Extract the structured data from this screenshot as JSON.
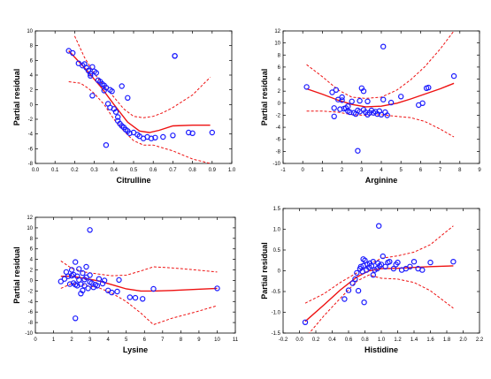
{
  "chart_data": [
    {
      "type": "scatter",
      "xlabel": "Citrulline",
      "ylabel": "Partial residual",
      "xlim": [
        0.0,
        1.0
      ],
      "ylim": [
        -8,
        10
      ],
      "xticks": [
        "0.0",
        "0.1",
        "0.2",
        "0.3",
        "0.4",
        "0.5",
        "0.6",
        "0.7",
        "0.8",
        "0.9",
        "1.0"
      ],
      "yticks": [
        "-8",
        "-6",
        "-4",
        "-2",
        "0",
        "2",
        "4",
        "6",
        "8",
        "10"
      ],
      "points": {
        "x": [
          0.17,
          0.19,
          0.22,
          0.24,
          0.25,
          0.26,
          0.27,
          0.28,
          0.28,
          0.29,
          0.3,
          0.31,
          0.32,
          0.33,
          0.34,
          0.35,
          0.35,
          0.36,
          0.37,
          0.38,
          0.39,
          0.4,
          0.41,
          0.42,
          0.42,
          0.43,
          0.44,
          0.45,
          0.46,
          0.47,
          0.48,
          0.5,
          0.52,
          0.53,
          0.55,
          0.57,
          0.59,
          0.61,
          0.65,
          0.7,
          0.71,
          0.78,
          0.8,
          0.9,
          0.71,
          0.36,
          0.29,
          0.47,
          0.44,
          0.38
        ],
        "y": [
          7.3,
          7.0,
          5.6,
          5.3,
          5.5,
          5.0,
          4.6,
          4.2,
          3.9,
          5.1,
          4.5,
          4.3,
          3.3,
          3.1,
          2.8,
          2.6,
          1.9,
          2.3,
          0.1,
          2.0,
          1.8,
          -0.6,
          -1.0,
          -1.7,
          -2.2,
          -2.6,
          -2.9,
          -3.1,
          -3.4,
          -3.6,
          -3.9,
          -3.8,
          -4.1,
          -4.3,
          -4.6,
          -4.4,
          -4.6,
          -4.5,
          -4.4,
          -4.2,
          6.6,
          -3.8,
          -3.9,
          -3.8,
          6.6,
          -5.5,
          1.2,
          0.9,
          2.5,
          -0.4
        ]
      },
      "fit": {
        "x": [
          0.17,
          0.25,
          0.33,
          0.4,
          0.47,
          0.53,
          0.58,
          0.63,
          0.7,
          0.8,
          0.89
        ],
        "y": [
          7.3,
          5.0,
          2.5,
          0.0,
          -2.4,
          -3.6,
          -3.8,
          -3.5,
          -2.9,
          -2.8,
          -2.8
        ]
      },
      "ci_upper": {
        "x": [
          0.2,
          0.25,
          0.3,
          0.35,
          0.4,
          0.45,
          0.5,
          0.55,
          0.6,
          0.65,
          0.7,
          0.8,
          0.89
        ],
        "y": [
          9.3,
          6.4,
          4.2,
          2.5,
          1.0,
          -0.6,
          -1.6,
          -1.8,
          -1.6,
          -1.1,
          -0.4,
          1.3,
          3.7
        ]
      },
      "ci_lower": {
        "x": [
          0.17,
          0.23,
          0.27,
          0.3,
          0.35,
          0.4,
          0.45,
          0.5,
          0.55,
          0.6,
          0.65,
          0.7,
          0.8,
          0.89
        ],
        "y": [
          3.1,
          2.9,
          2.2,
          1.5,
          0.0,
          -2.0,
          -3.6,
          -4.9,
          -5.5,
          -5.5,
          -5.9,
          -6.3,
          -7.4,
          -8.0
        ]
      }
    },
    {
      "type": "scatter",
      "xlabel": "Arginine",
      "ylabel": "Partial residual",
      "xlim": [
        -1,
        9
      ],
      "ylim": [
        -10,
        12
      ],
      "xticks": [
        "-1",
        "0",
        "1",
        "2",
        "3",
        "4",
        "5",
        "6",
        "7",
        "8",
        "9"
      ],
      "yticks": [
        "-10",
        "-8",
        "-6",
        "-4",
        "-2",
        "0",
        "2",
        "4",
        "6",
        "8",
        "10",
        "12"
      ],
      "points": {
        "x": [
          0.2,
          1.5,
          1.6,
          1.7,
          1.8,
          1.9,
          2.0,
          2.1,
          2.2,
          2.3,
          2.4,
          2.5,
          2.6,
          2.7,
          2.8,
          2.9,
          3.0,
          3.1,
          3.2,
          3.3,
          3.4,
          3.5,
          3.6,
          3.7,
          3.8,
          3.9,
          4.0,
          4.1,
          4.2,
          4.3,
          4.5,
          5.0,
          5.9,
          6.1,
          6.3,
          6.4,
          7.7,
          2.8,
          4.1,
          2.0,
          1.6,
          2.3,
          3.3,
          3.1,
          2.9
        ],
        "y": [
          2.7,
          1.8,
          -0.8,
          2.2,
          0.6,
          -1.0,
          1.0,
          -0.9,
          -0.8,
          -1.3,
          -1.5,
          0.3,
          -1.6,
          -1.8,
          -1.2,
          -1.4,
          2.5,
          -1.1,
          -1.5,
          -1.9,
          -1.6,
          -1.2,
          -1.6,
          -1.4,
          -1.8,
          -1.3,
          -1.9,
          9.4,
          -1.5,
          -2.0,
          0.1,
          1.1,
          -0.3,
          0.0,
          2.5,
          2.6,
          4.5,
          -7.9,
          0.6,
          0.5,
          -2.2,
          -0.5,
          0.3,
          2.0,
          0.4
        ]
      },
      "fit": {
        "x": [
          0.2,
          1.0,
          1.8,
          2.5,
          3.2,
          4.0,
          4.8,
          5.5,
          6.2,
          7.0,
          7.7
        ],
        "y": [
          2.4,
          1.5,
          0.5,
          -0.2,
          -0.6,
          -0.5,
          0.0,
          0.7,
          1.5,
          2.4,
          3.3
        ]
      },
      "ci_upper": {
        "x": [
          0.2,
          1.0,
          1.8,
          2.5,
          3.2,
          4.0,
          4.8,
          5.5,
          6.2,
          7.0,
          7.7
        ],
        "y": [
          6.4,
          4.4,
          2.2,
          1.0,
          0.8,
          1.0,
          2.2,
          3.9,
          6.0,
          9.0,
          12.0
        ]
      },
      "ci_lower": {
        "x": [
          0.2,
          1.0,
          1.8,
          2.5,
          3.2,
          4.0,
          4.8,
          5.5,
          6.2,
          7.0,
          7.7
        ],
        "y": [
          -1.3,
          -1.3,
          -1.5,
          -1.9,
          -2.0,
          -1.9,
          -2.2,
          -2.4,
          -3.0,
          -4.3,
          -5.6
        ]
      }
    },
    {
      "type": "scatter",
      "xlabel": "Lysine",
      "ylabel": "Partial residual",
      "xlim": [
        0,
        11
      ],
      "ylim": [
        -10,
        12
      ],
      "xticks": [
        "0",
        "1",
        "2",
        "3",
        "4",
        "5",
        "6",
        "7",
        "8",
        "9",
        "10",
        "11"
      ],
      "yticks": [
        "-10",
        "-8",
        "-6",
        "-4",
        "-2",
        "0",
        "2",
        "4",
        "6",
        "8",
        "10",
        "12"
      ],
      "points": {
        "x": [
          1.4,
          1.6,
          1.7,
          1.8,
          1.9,
          2.0,
          2.0,
          2.1,
          2.1,
          2.2,
          2.2,
          2.3,
          2.3,
          2.4,
          2.4,
          2.5,
          2.5,
          2.6,
          2.7,
          2.7,
          2.8,
          2.8,
          2.9,
          3.0,
          3.0,
          3.1,
          3.2,
          3.3,
          3.4,
          3.5,
          3.7,
          3.8,
          4.0,
          4.2,
          4.5,
          4.6,
          5.2,
          5.5,
          5.9,
          6.5,
          10.0,
          2.2,
          3.0,
          2.6
        ],
        "y": [
          -0.2,
          0.3,
          1.6,
          0.8,
          -0.7,
          2.0,
          0.9,
          1.1,
          -0.5,
          3.5,
          -0.8,
          0.8,
          -1.0,
          2.2,
          0.1,
          -0.7,
          -2.5,
          1.4,
          0.2,
          -1.0,
          2.6,
          0.6,
          -1.5,
          1.0,
          -0.3,
          -0.5,
          -1.3,
          -0.8,
          -1.0,
          0.3,
          -0.6,
          0.0,
          -1.9,
          -2.3,
          -2.1,
          0.1,
          -3.2,
          -3.3,
          -3.5,
          -1.6,
          -1.5,
          -7.2,
          9.6,
          -1.9
        ]
      },
      "fit": {
        "x": [
          1.4,
          2.0,
          2.7,
          3.5,
          4.2,
          5.0,
          5.8,
          6.5,
          7.5,
          8.8,
          10.0
        ],
        "y": [
          0.8,
          0.8,
          0.4,
          -0.1,
          -0.8,
          -1.6,
          -2.0,
          -2.0,
          -1.9,
          -1.7,
          -1.5
        ]
      },
      "ci_upper": {
        "x": [
          1.4,
          2.0,
          2.7,
          3.5,
          4.2,
          5.0,
          5.8,
          6.5,
          7.5,
          8.8,
          10.0
        ],
        "y": [
          3.7,
          2.3,
          1.6,
          1.2,
          0.9,
          1.0,
          1.8,
          2.6,
          2.4,
          2.0,
          1.6
        ]
      },
      "ci_lower": {
        "x": [
          1.4,
          2.0,
          2.7,
          3.5,
          4.2,
          5.0,
          5.8,
          6.5,
          7.5,
          8.8,
          10.0
        ],
        "y": [
          -1.5,
          -0.6,
          -0.9,
          -1.4,
          -2.4,
          -4.0,
          -6.2,
          -8.4,
          -7.2,
          -6.0,
          -4.8
        ]
      }
    },
    {
      "type": "scatter",
      "xlabel": "Histidine",
      "ylabel": "Partial residual",
      "xlim": [
        -0.2,
        2.2
      ],
      "ylim": [
        -1.5,
        1.5
      ],
      "xticks": [
        "-0.2",
        "0.0",
        "0.2",
        "0.4",
        "0.6",
        "0.8",
        "1.0",
        "1.2",
        "1.4",
        "1.6",
        "1.8",
        "2.0",
        "2.2"
      ],
      "yticks": [
        "-1.5",
        "-1.0",
        "-0.5",
        "0",
        "0.5",
        "1.0",
        "1.5"
      ],
      "points": {
        "x": [
          0.07,
          0.55,
          0.6,
          0.65,
          0.68,
          0.7,
          0.72,
          0.74,
          0.75,
          0.77,
          0.78,
          0.8,
          0.82,
          0.83,
          0.85,
          0.86,
          0.88,
          0.9,
          0.9,
          0.92,
          0.95,
          0.96,
          0.98,
          1.0,
          1.02,
          1.05,
          1.08,
          1.1,
          1.15,
          1.18,
          1.2,
          1.25,
          1.3,
          1.35,
          1.4,
          1.45,
          1.5,
          1.6,
          1.88,
          0.97,
          0.78,
          0.79
        ],
        "y": [
          -1.24,
          -0.68,
          -0.47,
          -0.3,
          -0.2,
          -0.05,
          -0.48,
          0.05,
          0.1,
          -0.02,
          0.12,
          0.25,
          0.02,
          0.15,
          0.08,
          0.18,
          0.12,
          0.22,
          -0.1,
          0.02,
          0.05,
          0.18,
          0.12,
          0.15,
          0.35,
          0.1,
          0.2,
          0.22,
          0.05,
          0.15,
          0.2,
          0.02,
          0.05,
          0.1,
          0.22,
          0.05,
          0.02,
          0.2,
          0.22,
          1.08,
          0.28,
          -0.76
        ]
      },
      "fit": {
        "x": [
          0.07,
          0.3,
          0.5,
          0.7,
          0.85,
          1.0,
          1.2,
          1.4,
          1.6,
          1.88
        ],
        "y": [
          -1.22,
          -0.82,
          -0.46,
          -0.15,
          0.0,
          0.05,
          0.06,
          0.08,
          0.1,
          0.12
        ]
      },
      "ci_upper": {
        "x": [
          0.07,
          0.3,
          0.5,
          0.7,
          0.85,
          1.0,
          1.2,
          1.4,
          1.6,
          1.88
        ],
        "y": [
          -0.78,
          -0.55,
          -0.28,
          -0.05,
          0.15,
          0.3,
          0.36,
          0.45,
          0.63,
          1.08
        ]
      },
      "ci_lower": {
        "x": [
          0.07,
          0.3,
          0.5,
          0.7,
          0.85,
          1.0,
          1.2,
          1.4,
          1.6,
          1.88
        ],
        "y": [
          -1.62,
          -1.08,
          -0.66,
          -0.25,
          -0.1,
          -0.18,
          -0.2,
          -0.28,
          -0.48,
          -0.9
        ]
      }
    }
  ]
}
